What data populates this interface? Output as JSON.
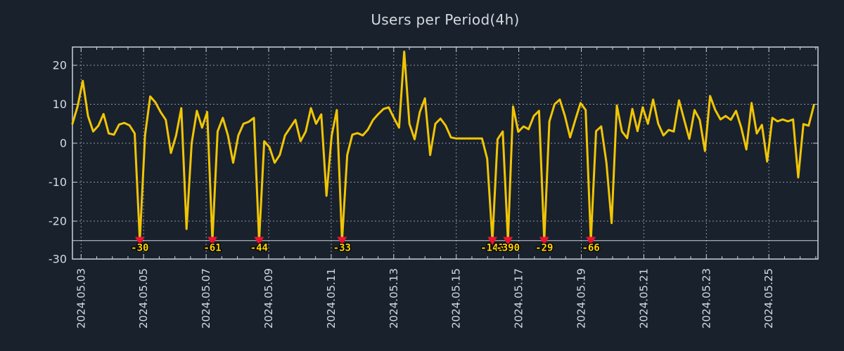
{
  "colors": {
    "background": "#19212d",
    "line": "#f0c505",
    "grid": "#8f97a3",
    "axis": "#ccd2d9",
    "text": "#d5dae0",
    "marker": "#ee1133",
    "annotation": "#ffd400"
  },
  "chart_data": {
    "type": "line",
    "title": "Users per Period(4h)",
    "xlabel": "",
    "ylabel": "",
    "x_step_hours": 4,
    "x_tick_labels": [
      "2024.05.03",
      "2024.05.05",
      "2024.05.07",
      "2024.05.09",
      "2024.05.11",
      "2024.05.13",
      "2024.05.15",
      "2024.05.17",
      "2024.05.19",
      "2024.05.21",
      "2024.05.23",
      "2024.05.25"
    ],
    "y_ticks": [
      20,
      10,
      0,
      -10,
      -20,
      -30
    ],
    "ylim": [
      -30,
      24.7
    ],
    "clip_level": -25,
    "grid": "dashed",
    "legend_position": "none",
    "series": {
      "name": "users",
      "values": [
        5,
        9.5,
        16,
        7,
        3,
        4.5,
        7.5,
        2.5,
        2.2,
        4.8,
        5.2,
        4.6,
        2.5,
        -30,
        2,
        12,
        10.5,
        8,
        6,
        -2.5,
        2,
        9,
        -22,
        0,
        8.3,
        4,
        8,
        -61,
        3,
        6.5,
        2,
        -5,
        2,
        5,
        5.5,
        6.5,
        -44,
        0.5,
        -1,
        -5,
        -3,
        2,
        4,
        6,
        0.5,
        3,
        9,
        5,
        7.4,
        -13.5,
        2,
        8.5,
        -33,
        -3,
        2.2,
        2.6,
        2,
        3.5,
        6,
        7.5,
        8.8,
        9.2,
        6.5,
        4,
        23.5,
        5,
        1,
        8,
        11.5,
        -3,
        5,
        6.3,
        4.5,
        1.5,
        1.2,
        1.2,
        1.2,
        1.2,
        1.2,
        1.2,
        -4,
        -143,
        1,
        3,
        -390,
        9.4,
        2.9,
        4.3,
        3.6,
        7,
        8.3,
        -29,
        5.6,
        10,
        11.2,
        7,
        1.5,
        6,
        10.3,
        8.5,
        -66,
        3.1,
        4.3,
        -5,
        -20.5,
        9.7,
        3,
        1.3,
        8.8,
        3.1,
        9.2,
        5,
        11.2,
        5,
        2,
        3.4,
        3,
        11,
        6,
        1.1,
        8.5,
        6,
        -2,
        12.1,
        8.5,
        6.1,
        7,
        6,
        8.3,
        4,
        -1.6,
        10.3,
        2.5,
        4.7,
        -4.7,
        6.5,
        5.6,
        6.1,
        5.6,
        6.1,
        -8.8,
        4.9,
        4.5,
        9.7
      ]
    },
    "annotations": [
      {
        "index": 13,
        "value": -30,
        "label": "-30"
      },
      {
        "index": 27,
        "value": -61,
        "label": "-61"
      },
      {
        "index": 36,
        "value": -44,
        "label": "-44"
      },
      {
        "index": 52,
        "value": -33,
        "label": "-33"
      },
      {
        "index": 81,
        "value": -143,
        "label": "-143"
      },
      {
        "index": 84,
        "value": -390,
        "label": "-390"
      },
      {
        "index": 91,
        "value": -29,
        "label": "-29"
      },
      {
        "index": 100,
        "value": -66,
        "label": "-66"
      }
    ]
  }
}
